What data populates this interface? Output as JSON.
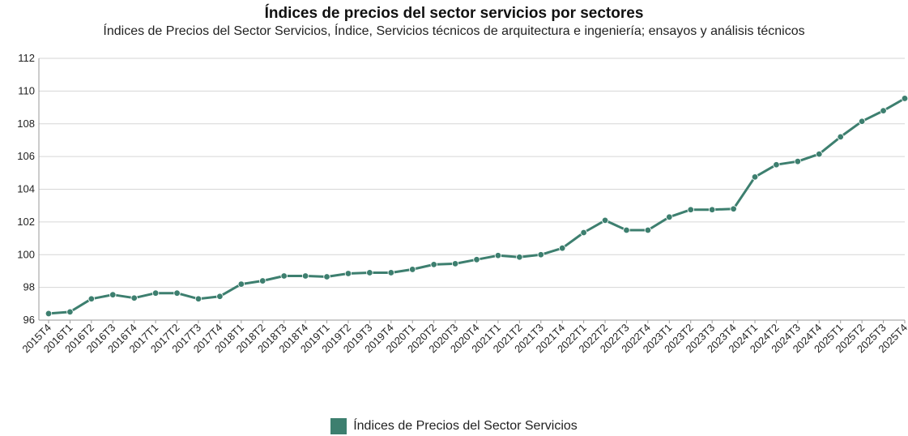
{
  "chart_data": {
    "type": "line",
    "title": "Índices de precios del sector servicios por sectores",
    "subtitle": "Índices de Precios del Sector Servicios, Índice, Servicios técnicos de arquitectura e ingeniería; ensayos y análisis técnicos",
    "xlabel": "",
    "ylabel": "",
    "ylim": [
      96,
      112
    ],
    "yticks": [
      96,
      98,
      100,
      102,
      104,
      106,
      108,
      110,
      112
    ],
    "grid": true,
    "legend_position": "bottom",
    "categories": [
      "2015T4",
      "2016T1",
      "2016T2",
      "2016T3",
      "2016T4",
      "2017T1",
      "2017T2",
      "2017T3",
      "2017T4",
      "2018T1",
      "2018T2",
      "2018T3",
      "2018T4",
      "2019T1",
      "2019T2",
      "2019T3",
      "2019T4",
      "2020T1",
      "2020T2",
      "2020T3",
      "2020T4",
      "2021T1",
      "2021T2",
      "2021T3",
      "2021T4",
      "2022T1",
      "2022T2",
      "2022T3",
      "2022T4",
      "2023T1",
      "2023T2",
      "2023T3",
      "2023T4",
      "2024T1",
      "2024T2",
      "2024T3",
      "2024T4",
      "2025T1",
      "2025T2",
      "2025T3",
      "2025T4"
    ],
    "series": [
      {
        "name": "Índices de Precios del Sector Servicios",
        "color": "#3d7f6f",
        "values": [
          96.4,
          96.5,
          97.3,
          97.55,
          97.35,
          97.65,
          97.65,
          97.3,
          97.45,
          98.2,
          98.4,
          98.7,
          98.7,
          98.65,
          98.85,
          98.9,
          98.9,
          99.1,
          99.4,
          99.45,
          99.7,
          99.95,
          99.85,
          100.0,
          100.4,
          101.35,
          102.1,
          101.5,
          101.5,
          102.3,
          102.75,
          102.75,
          102.8,
          104.75,
          105.5,
          105.7,
          106.15,
          107.2,
          108.15,
          108.8,
          109.55
        ]
      }
    ]
  }
}
